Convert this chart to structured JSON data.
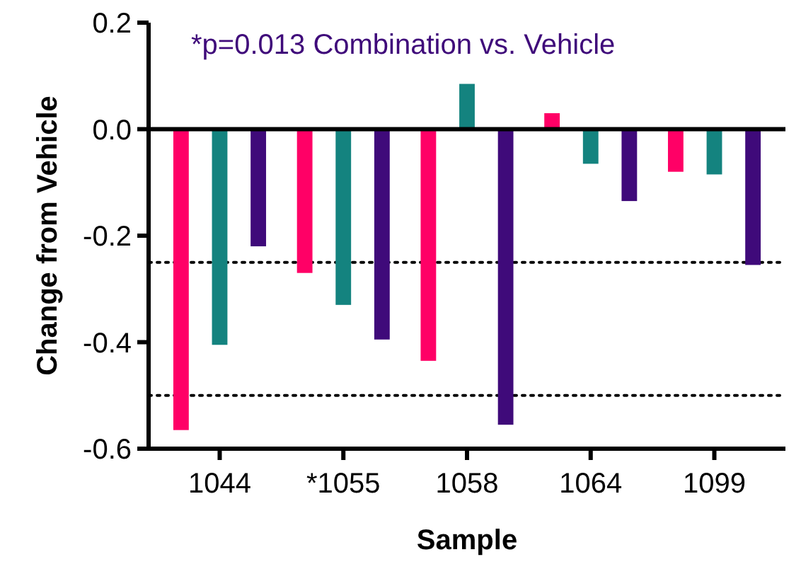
{
  "chart_data": {
    "type": "bar",
    "xlabel": "Sample",
    "ylabel": "Change from Vehicle",
    "annotations": [
      "*p=0.013 Combination vs. Vehicle"
    ],
    "categories": [
      "1044",
      "*1055",
      "1058",
      "1064",
      "1099"
    ],
    "series": [
      {
        "color": "#ff0066",
        "values": [
          -0.565,
          -0.27,
          -0.435,
          0.03,
          -0.08
        ]
      },
      {
        "color": "#14837f",
        "values": [
          -0.405,
          -0.33,
          0.085,
          -0.065,
          -0.085
        ]
      },
      {
        "color": "#3f0a7a",
        "values": [
          -0.22,
          -0.395,
          -0.555,
          -0.135,
          -0.255
        ]
      }
    ],
    "ylim": [
      -0.6,
      0.2
    ],
    "yticks": [
      {
        "value": -0.6,
        "label": "-0.6"
      },
      {
        "value": -0.4,
        "label": "-0.4"
      },
      {
        "value": -0.2,
        "label": "-0.2"
      },
      {
        "value": 0,
        "label": "0.0"
      },
      {
        "value": 0.2,
        "label": "0.2"
      }
    ],
    "ref_lines": [
      {
        "axis": "y",
        "value": -0.25,
        "line_style": "dotted",
        "color": "#000000"
      },
      {
        "axis": "y",
        "value": -0.5,
        "line_style": "dotted",
        "color": "#000000"
      }
    ],
    "tick_labels": "xy"
  }
}
